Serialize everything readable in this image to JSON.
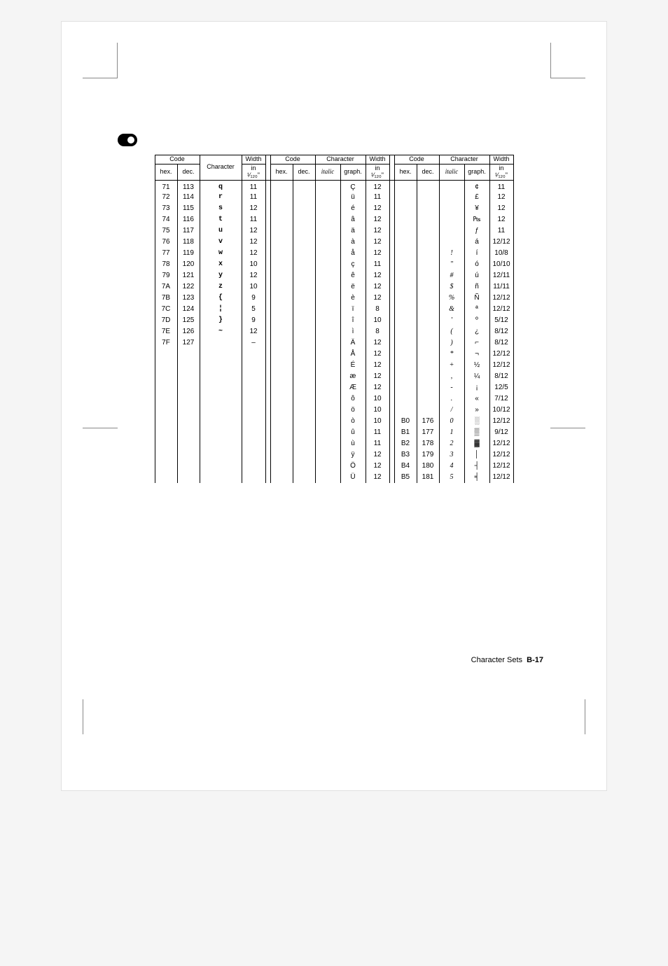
{
  "footer": {
    "label": "Character Sets",
    "page": "B-17"
  },
  "header_group": {
    "code": "Code",
    "hex": "hex.",
    "dec": "dec.",
    "character": "Character",
    "italic": "italic",
    "graph": "graph.",
    "width_top": "Width",
    "width_sub": "in ¹⁄₁₂₀\""
  },
  "block1": {
    "rows": [
      {
        "hex": "71",
        "dec": "113",
        "char": "q",
        "w": "11"
      },
      {
        "hex": "72",
        "dec": "114",
        "char": "r",
        "w": "11"
      },
      {
        "hex": "73",
        "dec": "115",
        "char": "s",
        "w": "12"
      },
      {
        "hex": "74",
        "dec": "116",
        "char": "t",
        "w": "11"
      },
      {
        "hex": "75",
        "dec": "117",
        "char": "u",
        "w": "12"
      },
      {
        "hex": "76",
        "dec": "118",
        "char": "v",
        "w": "12"
      },
      {
        "hex": "77",
        "dec": "119",
        "char": "w",
        "w": "12"
      },
      {
        "hex": "78",
        "dec": "120",
        "char": "x",
        "w": "10"
      },
      {
        "hex": "79",
        "dec": "121",
        "char": "y",
        "w": "12"
      },
      {
        "hex": "7A",
        "dec": "122",
        "char": "z",
        "w": "10"
      },
      {
        "hex": "7B",
        "dec": "123",
        "char": "{",
        "w": "9"
      },
      {
        "hex": "7C",
        "dec": "124",
        "char": "¦",
        "w": "5"
      },
      {
        "hex": "7D",
        "dec": "125",
        "char": "}",
        "w": "9"
      },
      {
        "hex": "7E",
        "dec": "126",
        "char": "~",
        "w": "12"
      },
      {
        "hex": "7F",
        "dec": "127",
        "char": "",
        "w": "–"
      }
    ]
  },
  "block2": {
    "rows": [
      {
        "graph": "Ç",
        "w": "12"
      },
      {
        "graph": "ü",
        "w": "11"
      },
      {
        "graph": "é",
        "w": "12"
      },
      {
        "graph": "â",
        "w": "12"
      },
      {
        "graph": "ä",
        "w": "12"
      },
      {
        "graph": "à",
        "w": "12"
      },
      {
        "graph": "å",
        "w": "12"
      },
      {
        "graph": "ç",
        "w": "11"
      },
      {
        "graph": "ê",
        "w": "12"
      },
      {
        "graph": "ë",
        "w": "12"
      },
      {
        "graph": "è",
        "w": "12"
      },
      {
        "graph": "ï",
        "w": "8"
      },
      {
        "graph": "î",
        "w": "10"
      },
      {
        "graph": "ì",
        "w": "8"
      },
      {
        "graph": "Ä",
        "w": "12"
      },
      {
        "graph": "Å",
        "w": "12"
      },
      {
        "graph": "É",
        "w": "12"
      },
      {
        "graph": "æ",
        "w": "12"
      },
      {
        "graph": "Æ",
        "w": "12"
      },
      {
        "graph": "ô",
        "w": "10"
      },
      {
        "graph": "ö",
        "w": "10"
      },
      {
        "graph": "ò",
        "w": "10"
      },
      {
        "graph": "û",
        "w": "11"
      },
      {
        "graph": "ù",
        "w": "11"
      },
      {
        "graph": "ÿ",
        "w": "12"
      },
      {
        "graph": "Ö",
        "w": "12"
      },
      {
        "graph": "Ü",
        "w": "12"
      }
    ]
  },
  "block3": {
    "rows": [
      {
        "hex": "",
        "dec": "",
        "italic": "",
        "graph": "¢",
        "w": "11"
      },
      {
        "hex": "",
        "dec": "",
        "italic": "",
        "graph": "£",
        "w": "12"
      },
      {
        "hex": "",
        "dec": "",
        "italic": "",
        "graph": "¥",
        "w": "12"
      },
      {
        "hex": "",
        "dec": "",
        "italic": "",
        "graph": "₧",
        "w": "12"
      },
      {
        "hex": "",
        "dec": "",
        "italic": "",
        "graph": "ƒ",
        "w": "11"
      },
      {
        "hex": "",
        "dec": "",
        "italic": "",
        "graph": "á",
        "w": "12/12"
      },
      {
        "hex": "",
        "dec": "",
        "italic": "!",
        "graph": "í",
        "w": "10/8"
      },
      {
        "hex": "",
        "dec": "",
        "italic": "\"",
        "graph": "ó",
        "w": "10/10"
      },
      {
        "hex": "",
        "dec": "",
        "italic": "#",
        "graph": "ú",
        "w": "12/11"
      },
      {
        "hex": "",
        "dec": "",
        "italic": "$",
        "graph": "ñ",
        "w": "11/11"
      },
      {
        "hex": "",
        "dec": "",
        "italic": "%",
        "graph": "Ñ",
        "w": "12/12"
      },
      {
        "hex": "",
        "dec": "",
        "italic": "&",
        "graph": "ª",
        "w": "12/12"
      },
      {
        "hex": "",
        "dec": "",
        "italic": "'",
        "graph": "º",
        "w": "5/12"
      },
      {
        "hex": "",
        "dec": "",
        "italic": "(",
        "graph": "¿",
        "w": "8/12"
      },
      {
        "hex": "",
        "dec": "",
        "italic": ")",
        "graph": "⌐",
        "w": "8/12"
      },
      {
        "hex": "",
        "dec": "",
        "italic": "*",
        "graph": "¬",
        "w": "12/12"
      },
      {
        "hex": "",
        "dec": "",
        "italic": "+",
        "graph": "½",
        "w": "12/12"
      },
      {
        "hex": "",
        "dec": "",
        "italic": ",",
        "graph": "¼",
        "w": "8/12"
      },
      {
        "hex": "",
        "dec": "",
        "italic": "-",
        "graph": "¡",
        "w": "12/5"
      },
      {
        "hex": "",
        "dec": "",
        "italic": ".",
        "graph": "«",
        "w": "7/12"
      },
      {
        "hex": "",
        "dec": "",
        "italic": "/",
        "graph": "»",
        "w": "10/12"
      },
      {
        "hex": "B0",
        "dec": "176",
        "italic": "0",
        "graph": "░",
        "w": "12/12"
      },
      {
        "hex": "B1",
        "dec": "177",
        "italic": "1",
        "graph": "▒",
        "w": "9/12"
      },
      {
        "hex": "B2",
        "dec": "178",
        "italic": "2",
        "graph": "▓",
        "w": "12/12"
      },
      {
        "hex": "B3",
        "dec": "179",
        "italic": "3",
        "graph": "│",
        "w": "12/12"
      },
      {
        "hex": "B4",
        "dec": "180",
        "italic": "4",
        "graph": "┤",
        "w": "12/12"
      },
      {
        "hex": "B5",
        "dec": "181",
        "italic": "5",
        "graph": "╡",
        "w": "12/12"
      }
    ]
  }
}
